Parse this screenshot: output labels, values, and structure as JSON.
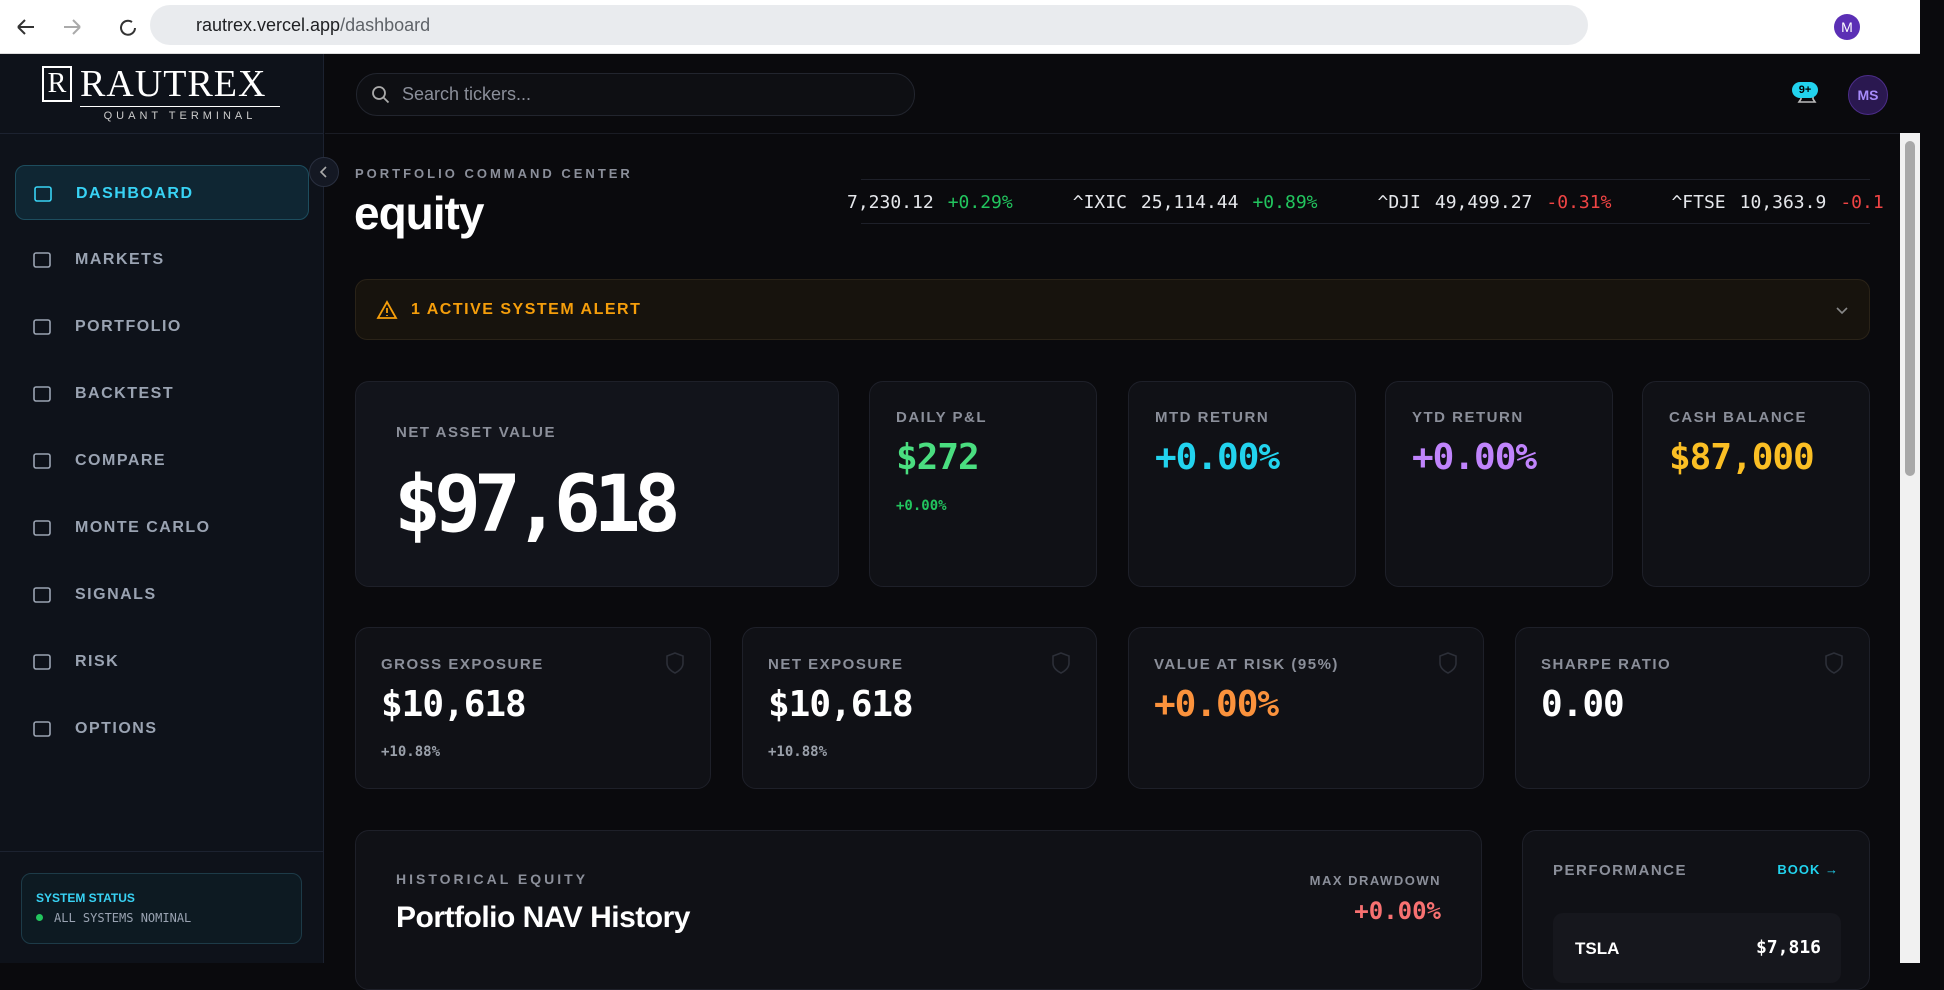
{
  "browser": {
    "url_host": "rautrex.vercel.app",
    "url_path": "/dashboard",
    "avatar": "M"
  },
  "sidebar": {
    "logo_initial": "R",
    "logo": "RAUTREX",
    "logo_sub": "QUANT TERMINAL",
    "nav": [
      "DASHBOARD",
      "MARKETS",
      "PORTFOLIO",
      "BACKTEST",
      "COMPARE",
      "MONTE CARLO",
      "SIGNALS",
      "RISK",
      "OPTIONS"
    ],
    "status_title": "SYSTEM STATUS",
    "status_text": "ALL SYSTEMS NOMINAL"
  },
  "header": {
    "search_placeholder": "Search tickers...",
    "notification_badge": "9+",
    "user_initials": "MS"
  },
  "page": {
    "eyebrow": "PORTFOLIO COMMAND CENTER",
    "title": "equity"
  },
  "ticker": [
    {
      "price": "7,230.12",
      "change": "+0.29%"
    },
    {
      "symbol": "^IXIC",
      "price": "25,114.44",
      "change": "+0.89%"
    },
    {
      "symbol": "^DJI",
      "price": "49,499.27",
      "change": "-0.31%"
    },
    {
      "symbol": "^FTSE",
      "price": "10,363.9",
      "change": "-0.1"
    }
  ],
  "alert": "1 ACTIVE SYSTEM ALERT",
  "metrics": [
    {
      "label": "NET ASSET VALUE",
      "value": "$97,618"
    },
    {
      "label": "DAILY P&L",
      "value": "$272",
      "sub": "+0.00%"
    },
    {
      "label": "MTD RETURN",
      "value": "+0.00%"
    },
    {
      "label": "YTD RETURN",
      "value": "+0.00%"
    },
    {
      "label": "CASH BALANCE",
      "value": "$87,000"
    }
  ],
  "risk": [
    {
      "label": "GROSS EXPOSURE",
      "value": "$10,618",
      "sub": "+10.88%"
    },
    {
      "label": "NET EXPOSURE",
      "value": "$10,618",
      "sub": "+10.88%"
    },
    {
      "label": "VALUE AT RISK (95%)",
      "value": "+0.00%"
    },
    {
      "label": "SHARPE RATIO",
      "value": "0.00"
    }
  ],
  "history": {
    "eyebrow": "HISTORICAL EQUITY",
    "title": "Portfolio NAV History",
    "drawdown_label": "MAX DRAWDOWN",
    "drawdown_value": "+0.00%"
  },
  "performance": {
    "title": "PERFORMANCE",
    "link": "BOOK",
    "rows": [
      {
        "symbol": "TSLA",
        "value": "$7,816"
      }
    ]
  }
}
